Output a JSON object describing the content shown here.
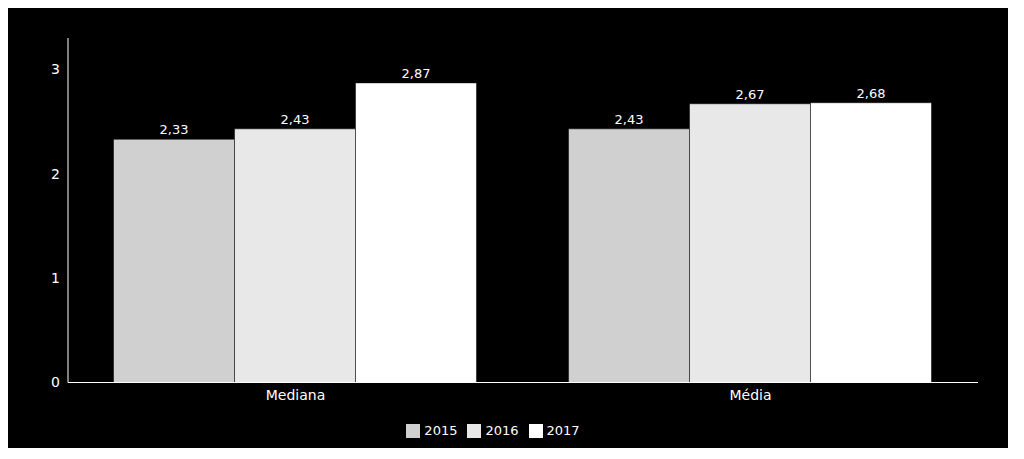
{
  "chart_data": {
    "type": "bar",
    "categories": [
      "Mediana",
      "Média"
    ],
    "series": [
      {
        "name": "2015",
        "color": "#d0d0d0",
        "values": [
          2.33,
          2.43
        ],
        "value_labels": [
          "2,33",
          "2,43"
        ]
      },
      {
        "name": "2016",
        "color": "#e8e8e8",
        "values": [
          2.43,
          2.67
        ],
        "value_labels": [
          "2,43",
          "2,67"
        ]
      },
      {
        "name": "2017",
        "color": "#ffffff",
        "values": [
          2.87,
          2.68
        ],
        "value_labels": [
          "2,87",
          "2,68"
        ]
      }
    ],
    "ylim": [
      0,
      3.3
    ],
    "yticks": [
      0,
      1,
      2,
      3
    ],
    "grid": false,
    "legend": "bottom",
    "data_labels": true
  }
}
